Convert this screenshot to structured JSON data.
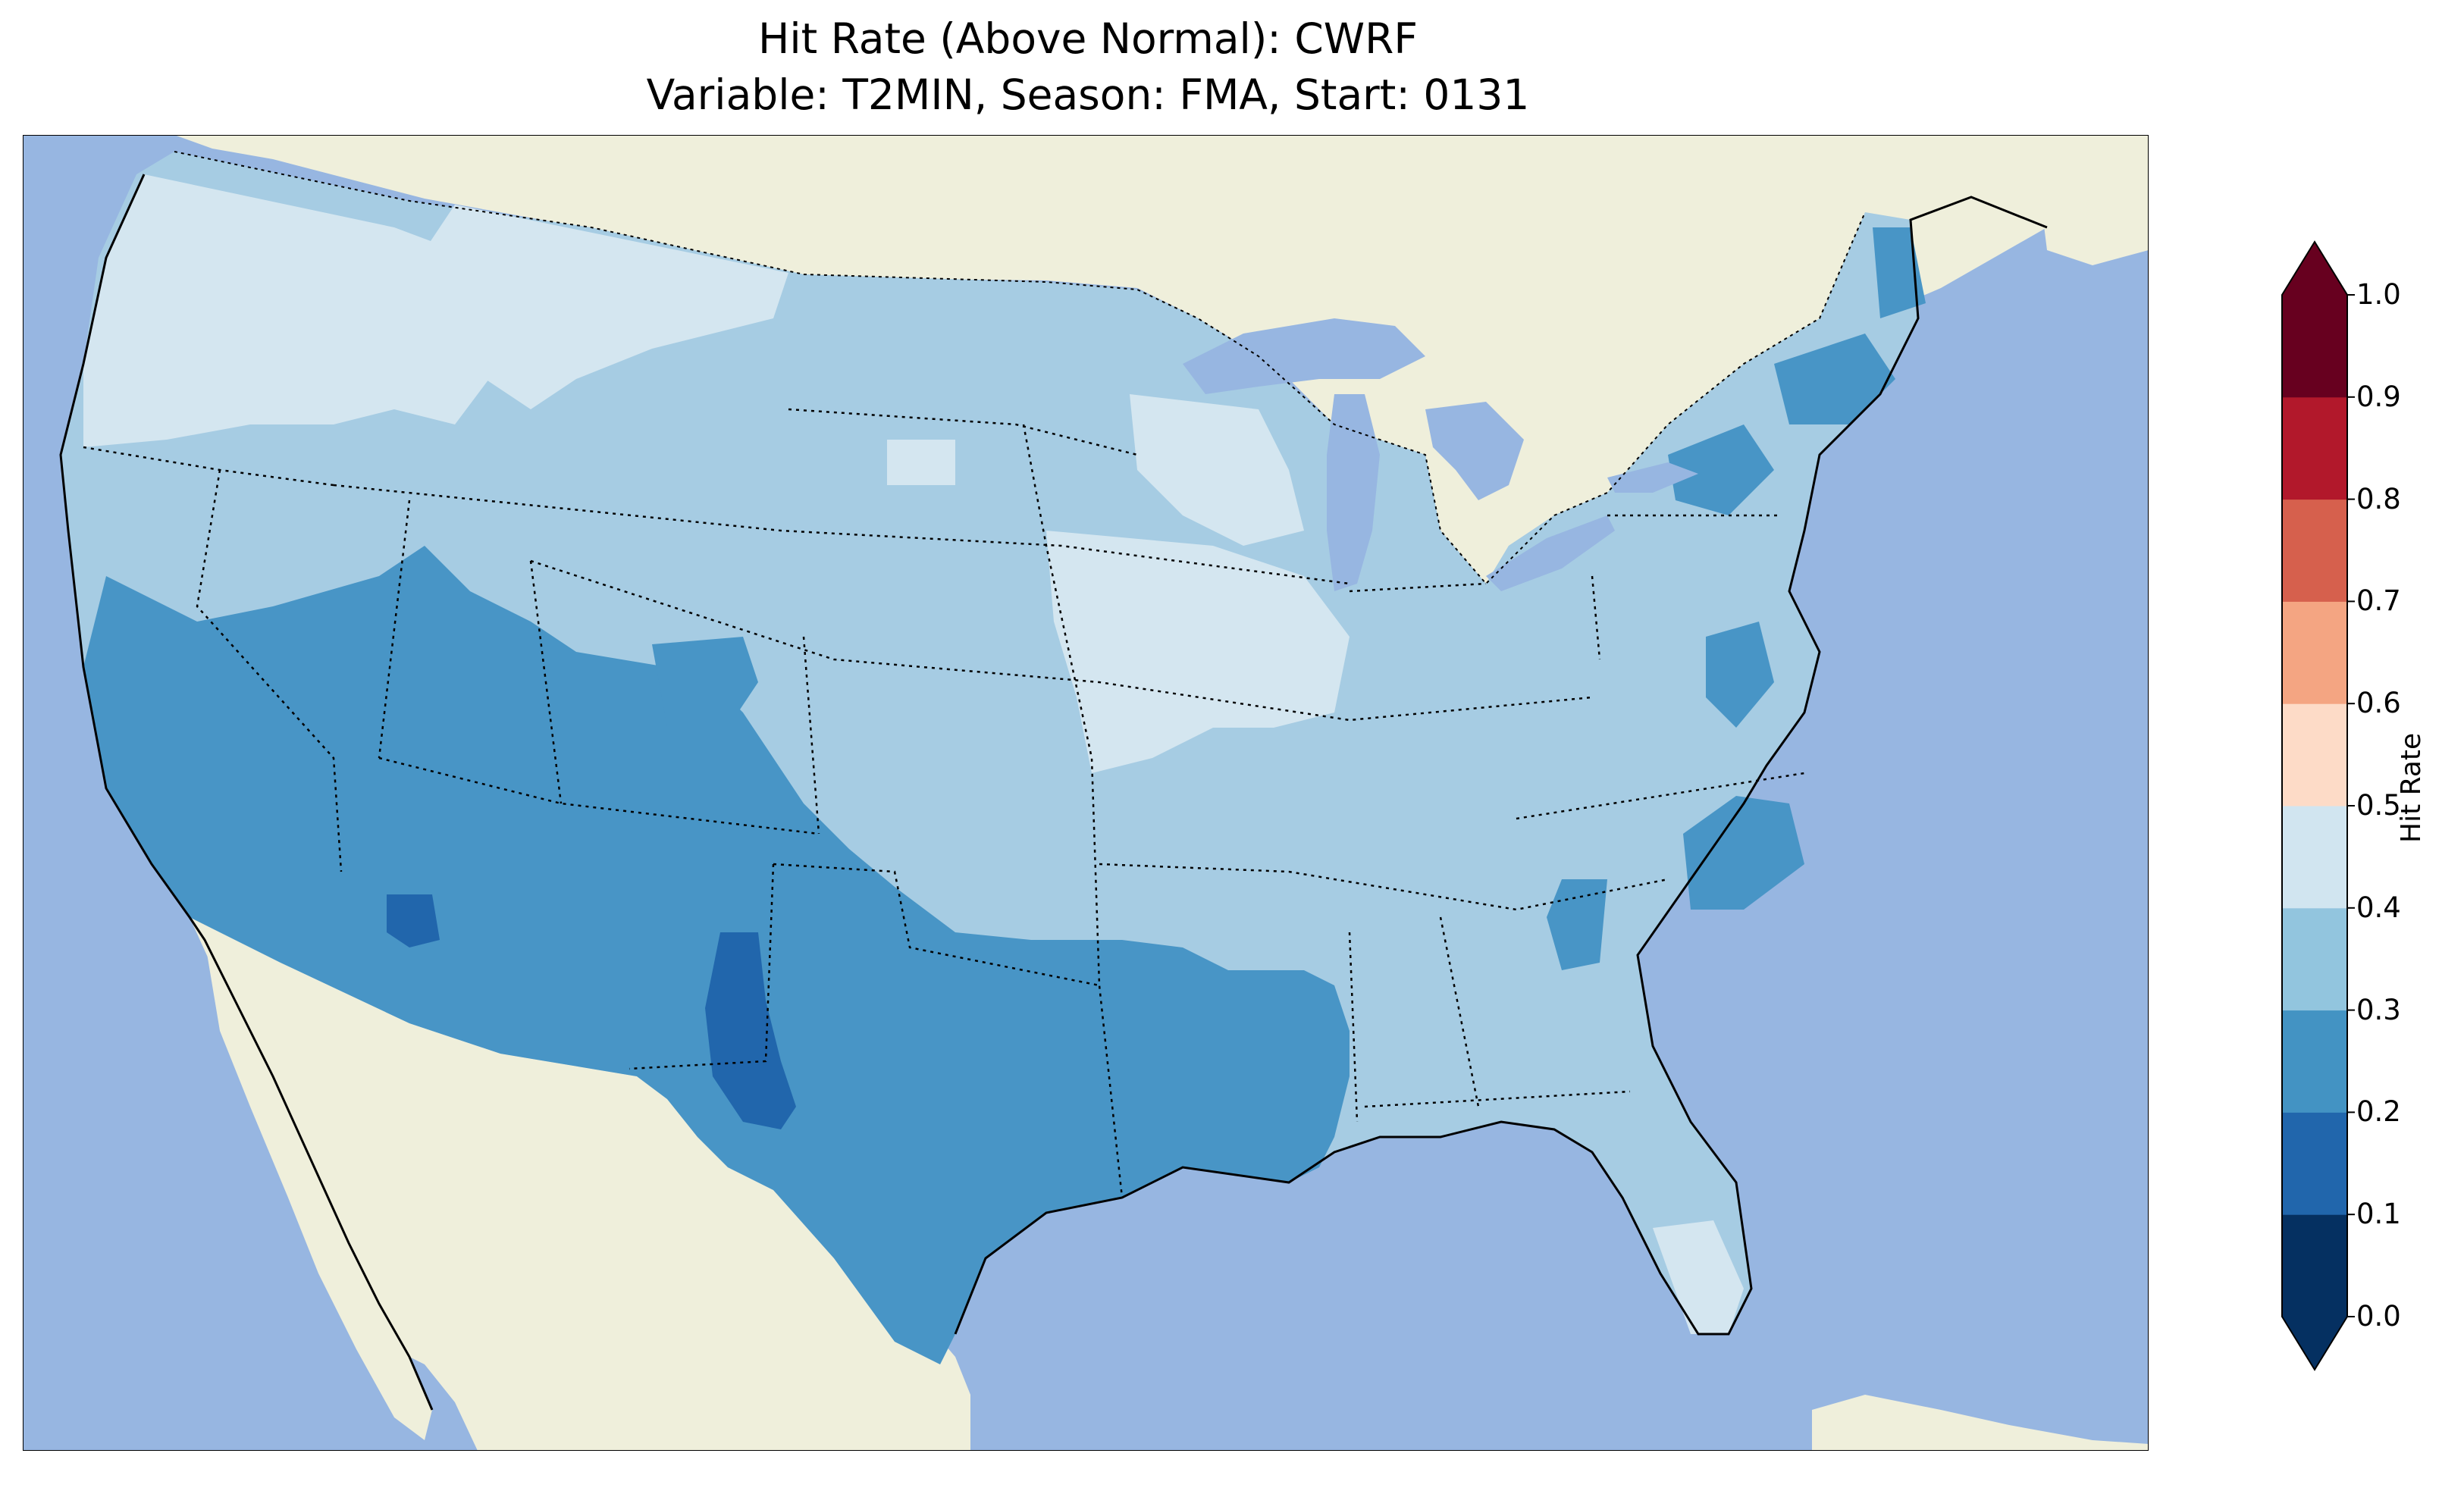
{
  "title": {
    "line1": "Hit Rate (Above Normal): CWRF",
    "line2": "Variable: T2MIN, Season: FMA, Start: 0131"
  },
  "colorbar": {
    "label": "Hit Rate",
    "ticks": [
      "0.0",
      "0.1",
      "0.2",
      "0.3",
      "0.4",
      "0.5",
      "0.6",
      "0.7",
      "0.8",
      "0.9",
      "1.0"
    ],
    "colors": [
      "#053061",
      "#2166ac",
      "#4393c3",
      "#92c5de",
      "#d1e5f0",
      "#fddbc7",
      "#f4a582",
      "#d6604d",
      "#b2182b",
      "#67001f"
    ],
    "extend": "both"
  },
  "map": {
    "ocean_color": "#97b6e1",
    "land_color": "#efefdb",
    "regions": [
      {
        "name": "Pacific Northwest",
        "value": 0.45
      },
      {
        "name": "Northern Rockies",
        "value": 0.35
      },
      {
        "name": "Upper Midwest",
        "value": 0.45
      },
      {
        "name": "Iowa / Illinois",
        "value": 0.45
      },
      {
        "name": "Southwest",
        "value": 0.25
      },
      {
        "name": "Texas",
        "value": 0.25
      },
      {
        "name": "West Texas / New Mexico core",
        "value": 0.15
      },
      {
        "name": "Southeast",
        "value": 0.35
      },
      {
        "name": "Mid-Atlantic / New England",
        "value": 0.25
      },
      {
        "name": "South Florida",
        "value": 0.45
      }
    ]
  }
}
